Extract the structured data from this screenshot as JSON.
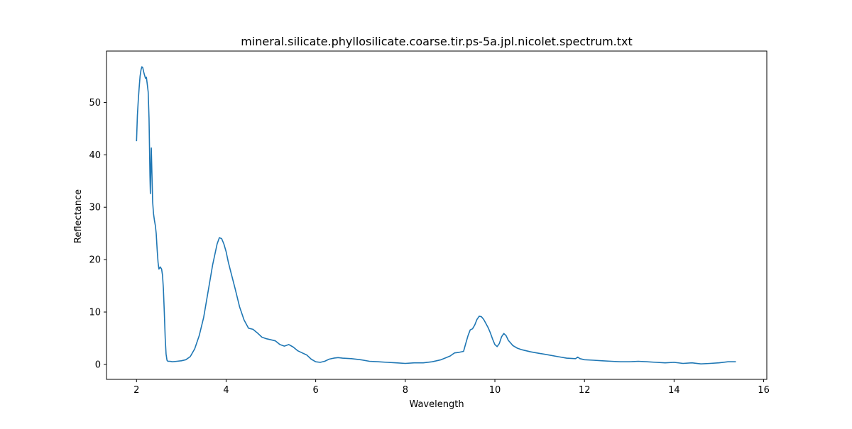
{
  "chart_data": {
    "type": "line",
    "title": "mineral.silicate.phyllosilicate.coarse.tir.ps-5a.jpl.nicolet.spectrum.txt",
    "xlabel": "Wavelength",
    "ylabel": "Reflectance",
    "xlim": [
      1.33,
      16.07
    ],
    "ylim": [
      -2.85,
      59.8
    ],
    "xticks": [
      2,
      4,
      6,
      8,
      10,
      12,
      14,
      16
    ],
    "yticks": [
      0,
      10,
      20,
      30,
      40,
      50
    ],
    "grid": false,
    "legend": "none",
    "series": [
      {
        "color": "#1f77b4",
        "points": [
          [
            2.0,
            42.6
          ],
          [
            2.02,
            47.5
          ],
          [
            2.04,
            50.5
          ],
          [
            2.06,
            53.0
          ],
          [
            2.08,
            55.0
          ],
          [
            2.1,
            56.2
          ],
          [
            2.12,
            56.8
          ],
          [
            2.14,
            56.6
          ],
          [
            2.16,
            55.8
          ],
          [
            2.18,
            55.2
          ],
          [
            2.2,
            54.6
          ],
          [
            2.22,
            54.8
          ],
          [
            2.24,
            53.5
          ],
          [
            2.26,
            52.0
          ],
          [
            2.28,
            47.0
          ],
          [
            2.3,
            36.0
          ],
          [
            2.31,
            32.6
          ],
          [
            2.32,
            38.0
          ],
          [
            2.33,
            41.3
          ],
          [
            2.34,
            38.0
          ],
          [
            2.36,
            31.0
          ],
          [
            2.38,
            28.8
          ],
          [
            2.4,
            27.5
          ],
          [
            2.42,
            26.5
          ],
          [
            2.44,
            25.0
          ],
          [
            2.46,
            22.0
          ],
          [
            2.48,
            19.5
          ],
          [
            2.5,
            18.2
          ],
          [
            2.53,
            18.6
          ],
          [
            2.56,
            18.2
          ],
          [
            2.58,
            17.0
          ],
          [
            2.6,
            14.5
          ],
          [
            2.62,
            10.0
          ],
          [
            2.64,
            5.0
          ],
          [
            2.66,
            2.0
          ],
          [
            2.68,
            0.8
          ],
          [
            2.7,
            0.6
          ],
          [
            2.75,
            0.6
          ],
          [
            2.8,
            0.5
          ],
          [
            2.9,
            0.6
          ],
          [
            3.0,
            0.7
          ],
          [
            3.1,
            0.9
          ],
          [
            3.2,
            1.5
          ],
          [
            3.3,
            3.0
          ],
          [
            3.4,
            5.5
          ],
          [
            3.5,
            9.0
          ],
          [
            3.6,
            14.0
          ],
          [
            3.7,
            19.0
          ],
          [
            3.8,
            23.0
          ],
          [
            3.85,
            24.2
          ],
          [
            3.9,
            24.0
          ],
          [
            3.95,
            23.0
          ],
          [
            4.0,
            21.5
          ],
          [
            4.05,
            19.5
          ],
          [
            4.1,
            17.8
          ],
          [
            4.2,
            14.5
          ],
          [
            4.3,
            11.0
          ],
          [
            4.4,
            8.5
          ],
          [
            4.5,
            6.9
          ],
          [
            4.6,
            6.7
          ],
          [
            4.7,
            6.0
          ],
          [
            4.8,
            5.2
          ],
          [
            4.9,
            4.9
          ],
          [
            5.0,
            4.7
          ],
          [
            5.1,
            4.5
          ],
          [
            5.2,
            3.8
          ],
          [
            5.3,
            3.5
          ],
          [
            5.4,
            3.8
          ],
          [
            5.5,
            3.3
          ],
          [
            5.6,
            2.6
          ],
          [
            5.7,
            2.2
          ],
          [
            5.8,
            1.8
          ],
          [
            5.9,
            1.0
          ],
          [
            6.0,
            0.5
          ],
          [
            6.1,
            0.4
          ],
          [
            6.2,
            0.6
          ],
          [
            6.3,
            1.0
          ],
          [
            6.4,
            1.2
          ],
          [
            6.5,
            1.3
          ],
          [
            6.6,
            1.2
          ],
          [
            6.8,
            1.1
          ],
          [
            7.0,
            0.9
          ],
          [
            7.2,
            0.6
          ],
          [
            7.4,
            0.5
          ],
          [
            7.6,
            0.4
          ],
          [
            7.8,
            0.3
          ],
          [
            8.0,
            0.2
          ],
          [
            8.2,
            0.3
          ],
          [
            8.4,
            0.3
          ],
          [
            8.6,
            0.5
          ],
          [
            8.8,
            0.9
          ],
          [
            9.0,
            1.6
          ],
          [
            9.1,
            2.2
          ],
          [
            9.2,
            2.3
          ],
          [
            9.3,
            2.5
          ],
          [
            9.35,
            4.0
          ],
          [
            9.4,
            5.5
          ],
          [
            9.45,
            6.6
          ],
          [
            9.5,
            6.8
          ],
          [
            9.55,
            7.5
          ],
          [
            9.6,
            8.6
          ],
          [
            9.65,
            9.2
          ],
          [
            9.7,
            9.1
          ],
          [
            9.75,
            8.6
          ],
          [
            9.8,
            7.8
          ],
          [
            9.85,
            7.0
          ],
          [
            9.9,
            6.0
          ],
          [
            9.95,
            4.8
          ],
          [
            10.0,
            3.8
          ],
          [
            10.05,
            3.4
          ],
          [
            10.1,
            4.0
          ],
          [
            10.15,
            5.3
          ],
          [
            10.2,
            5.9
          ],
          [
            10.25,
            5.5
          ],
          [
            10.3,
            4.6
          ],
          [
            10.4,
            3.6
          ],
          [
            10.5,
            3.1
          ],
          [
            10.6,
            2.8
          ],
          [
            10.8,
            2.4
          ],
          [
            11.0,
            2.1
          ],
          [
            11.2,
            1.8
          ],
          [
            11.4,
            1.5
          ],
          [
            11.6,
            1.2
          ],
          [
            11.8,
            1.1
          ],
          [
            11.85,
            1.4
          ],
          [
            11.9,
            1.1
          ],
          [
            12.0,
            0.9
          ],
          [
            12.2,
            0.8
          ],
          [
            12.4,
            0.7
          ],
          [
            12.6,
            0.6
          ],
          [
            12.8,
            0.5
          ],
          [
            13.0,
            0.5
          ],
          [
            13.2,
            0.6
          ],
          [
            13.4,
            0.5
          ],
          [
            13.6,
            0.4
          ],
          [
            13.8,
            0.3
          ],
          [
            14.0,
            0.4
          ],
          [
            14.2,
            0.2
          ],
          [
            14.4,
            0.3
          ],
          [
            14.6,
            0.1
          ],
          [
            14.8,
            0.2
          ],
          [
            15.0,
            0.3
          ],
          [
            15.2,
            0.5
          ],
          [
            15.38,
            0.5
          ]
        ]
      }
    ]
  }
}
